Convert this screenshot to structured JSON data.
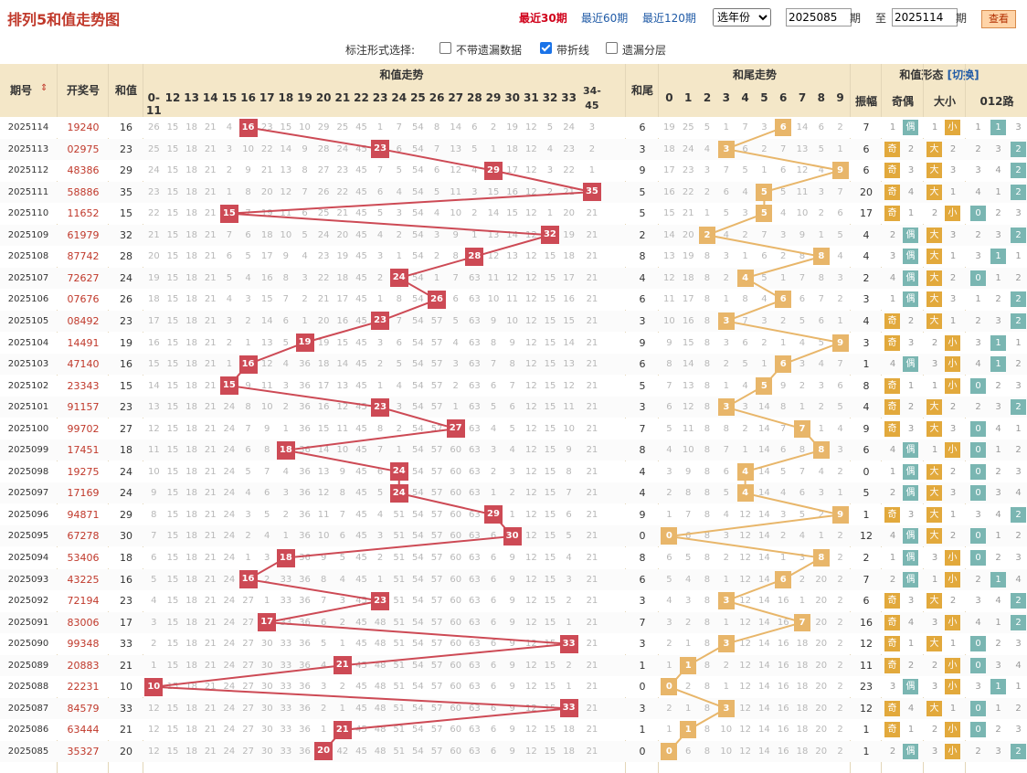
{
  "title": "排列5和值走势图",
  "period_links": [
    {
      "label": "最近30期",
      "active": true
    },
    {
      "label": "最近60期",
      "active": false
    },
    {
      "label": "最近120期",
      "active": false
    }
  ],
  "year_select": "选年份",
  "from_issue": "2025085",
  "from_suffix": "期",
  "to_prefix": "至",
  "to_issue": "2025114",
  "to_suffix": "期",
  "query_label": "查看",
  "options": {
    "label": "标注形式选择:",
    "items": [
      {
        "label": "不带遗漏数据",
        "checked": false
      },
      {
        "label": "带折线",
        "checked": true
      },
      {
        "label": "遗漏分层",
        "checked": false
      }
    ]
  },
  "headers": {
    "issue": "期号",
    "sort_icon": "sort-icon",
    "draw": "开奖号",
    "sum": "和值",
    "sum_trend": "和值走势",
    "sum_cols": [
      "0-11",
      "12",
      "13",
      "14",
      "15",
      "16",
      "17",
      "18",
      "19",
      "20",
      "21",
      "22",
      "23",
      "24",
      "25",
      "26",
      "27",
      "28",
      "29",
      "30",
      "31",
      "32",
      "33",
      "34-45"
    ],
    "tail": "和尾",
    "tail_trend": "和尾走势",
    "tail_cols": [
      "0",
      "1",
      "2",
      "3",
      "4",
      "5",
      "6",
      "7",
      "8",
      "9"
    ],
    "form": "和值形态",
    "switch_label": "[切换]",
    "amp": "振幅",
    "oddeven": "奇偶",
    "bigsmall": "大小",
    "route": "012路"
  },
  "labels": {
    "odd": "奇",
    "even": "偶",
    "big": "大",
    "small": "小"
  },
  "colors": {
    "red_mark": "#cd4a55",
    "orange_mark": "#e8b66a",
    "header_bg": "#f4e7c8",
    "link": "#1f5aa6",
    "title": "#c0392b"
  },
  "rows": [
    {
      "issue": "2025114",
      "draw": "19240",
      "sum": 16,
      "tail": 6,
      "amp": 7
    },
    {
      "issue": "2025113",
      "draw": "02975",
      "sum": 23,
      "tail": 3,
      "amp": 6
    },
    {
      "issue": "2025112",
      "draw": "48386",
      "sum": 29,
      "tail": 9,
      "amp": 6
    },
    {
      "issue": "2025111",
      "draw": "58886",
      "sum": 35,
      "tail": 5,
      "amp": 20
    },
    {
      "issue": "2025110",
      "draw": "11652",
      "sum": 15,
      "tail": 5,
      "amp": 17
    },
    {
      "issue": "2025109",
      "draw": "61979",
      "sum": 32,
      "tail": 2,
      "amp": 4
    },
    {
      "issue": "2025108",
      "draw": "87742",
      "sum": 28,
      "tail": 8,
      "amp": 4
    },
    {
      "issue": "2025107",
      "draw": "72627",
      "sum": 24,
      "tail": 4,
      "amp": 2
    },
    {
      "issue": "2025106",
      "draw": "07676",
      "sum": 26,
      "tail": 6,
      "amp": 3
    },
    {
      "issue": "2025105",
      "draw": "08492",
      "sum": 23,
      "tail": 3,
      "amp": 4
    },
    {
      "issue": "2025104",
      "draw": "14491",
      "sum": 19,
      "tail": 9,
      "amp": 3
    },
    {
      "issue": "2025103",
      "draw": "47140",
      "sum": 16,
      "tail": 6,
      "amp": 1
    },
    {
      "issue": "2025102",
      "draw": "23343",
      "sum": 15,
      "tail": 5,
      "amp": 8
    },
    {
      "issue": "2025101",
      "draw": "91157",
      "sum": 23,
      "tail": 3,
      "amp": 4
    },
    {
      "issue": "2025100",
      "draw": "99702",
      "sum": 27,
      "tail": 7,
      "amp": 9
    },
    {
      "issue": "2025099",
      "draw": "17451",
      "sum": 18,
      "tail": 8,
      "amp": 6
    },
    {
      "issue": "2025098",
      "draw": "19275",
      "sum": 24,
      "tail": 4,
      "amp": 0
    },
    {
      "issue": "2025097",
      "draw": "17169",
      "sum": 24,
      "tail": 4,
      "amp": 5
    },
    {
      "issue": "2025096",
      "draw": "94871",
      "sum": 29,
      "tail": 9,
      "amp": 1
    },
    {
      "issue": "2025095",
      "draw": "67278",
      "sum": 30,
      "tail": 0,
      "amp": 12
    },
    {
      "issue": "2025094",
      "draw": "53406",
      "sum": 18,
      "tail": 8,
      "amp": 2
    },
    {
      "issue": "2025093",
      "draw": "43225",
      "sum": 16,
      "tail": 6,
      "amp": 7
    },
    {
      "issue": "2025092",
      "draw": "72194",
      "sum": 23,
      "tail": 3,
      "amp": 6
    },
    {
      "issue": "2025091",
      "draw": "83006",
      "sum": 17,
      "tail": 7,
      "amp": 16
    },
    {
      "issue": "2025090",
      "draw": "99348",
      "sum": 33,
      "tail": 3,
      "amp": 12
    },
    {
      "issue": "2025089",
      "draw": "20883",
      "sum": 21,
      "tail": 1,
      "amp": 11
    },
    {
      "issue": "2025088",
      "draw": "22231",
      "sum": 10,
      "tail": 0,
      "amp": 23
    },
    {
      "issue": "2025087",
      "draw": "84579",
      "sum": 33,
      "tail": 3,
      "amp": 12
    },
    {
      "issue": "2025086",
      "draw": "63444",
      "sum": 21,
      "tail": 1,
      "amp": 1
    },
    {
      "issue": "2025085",
      "draw": "35327",
      "sum": 20,
      "tail": 0,
      "amp": 1
    }
  ]
}
